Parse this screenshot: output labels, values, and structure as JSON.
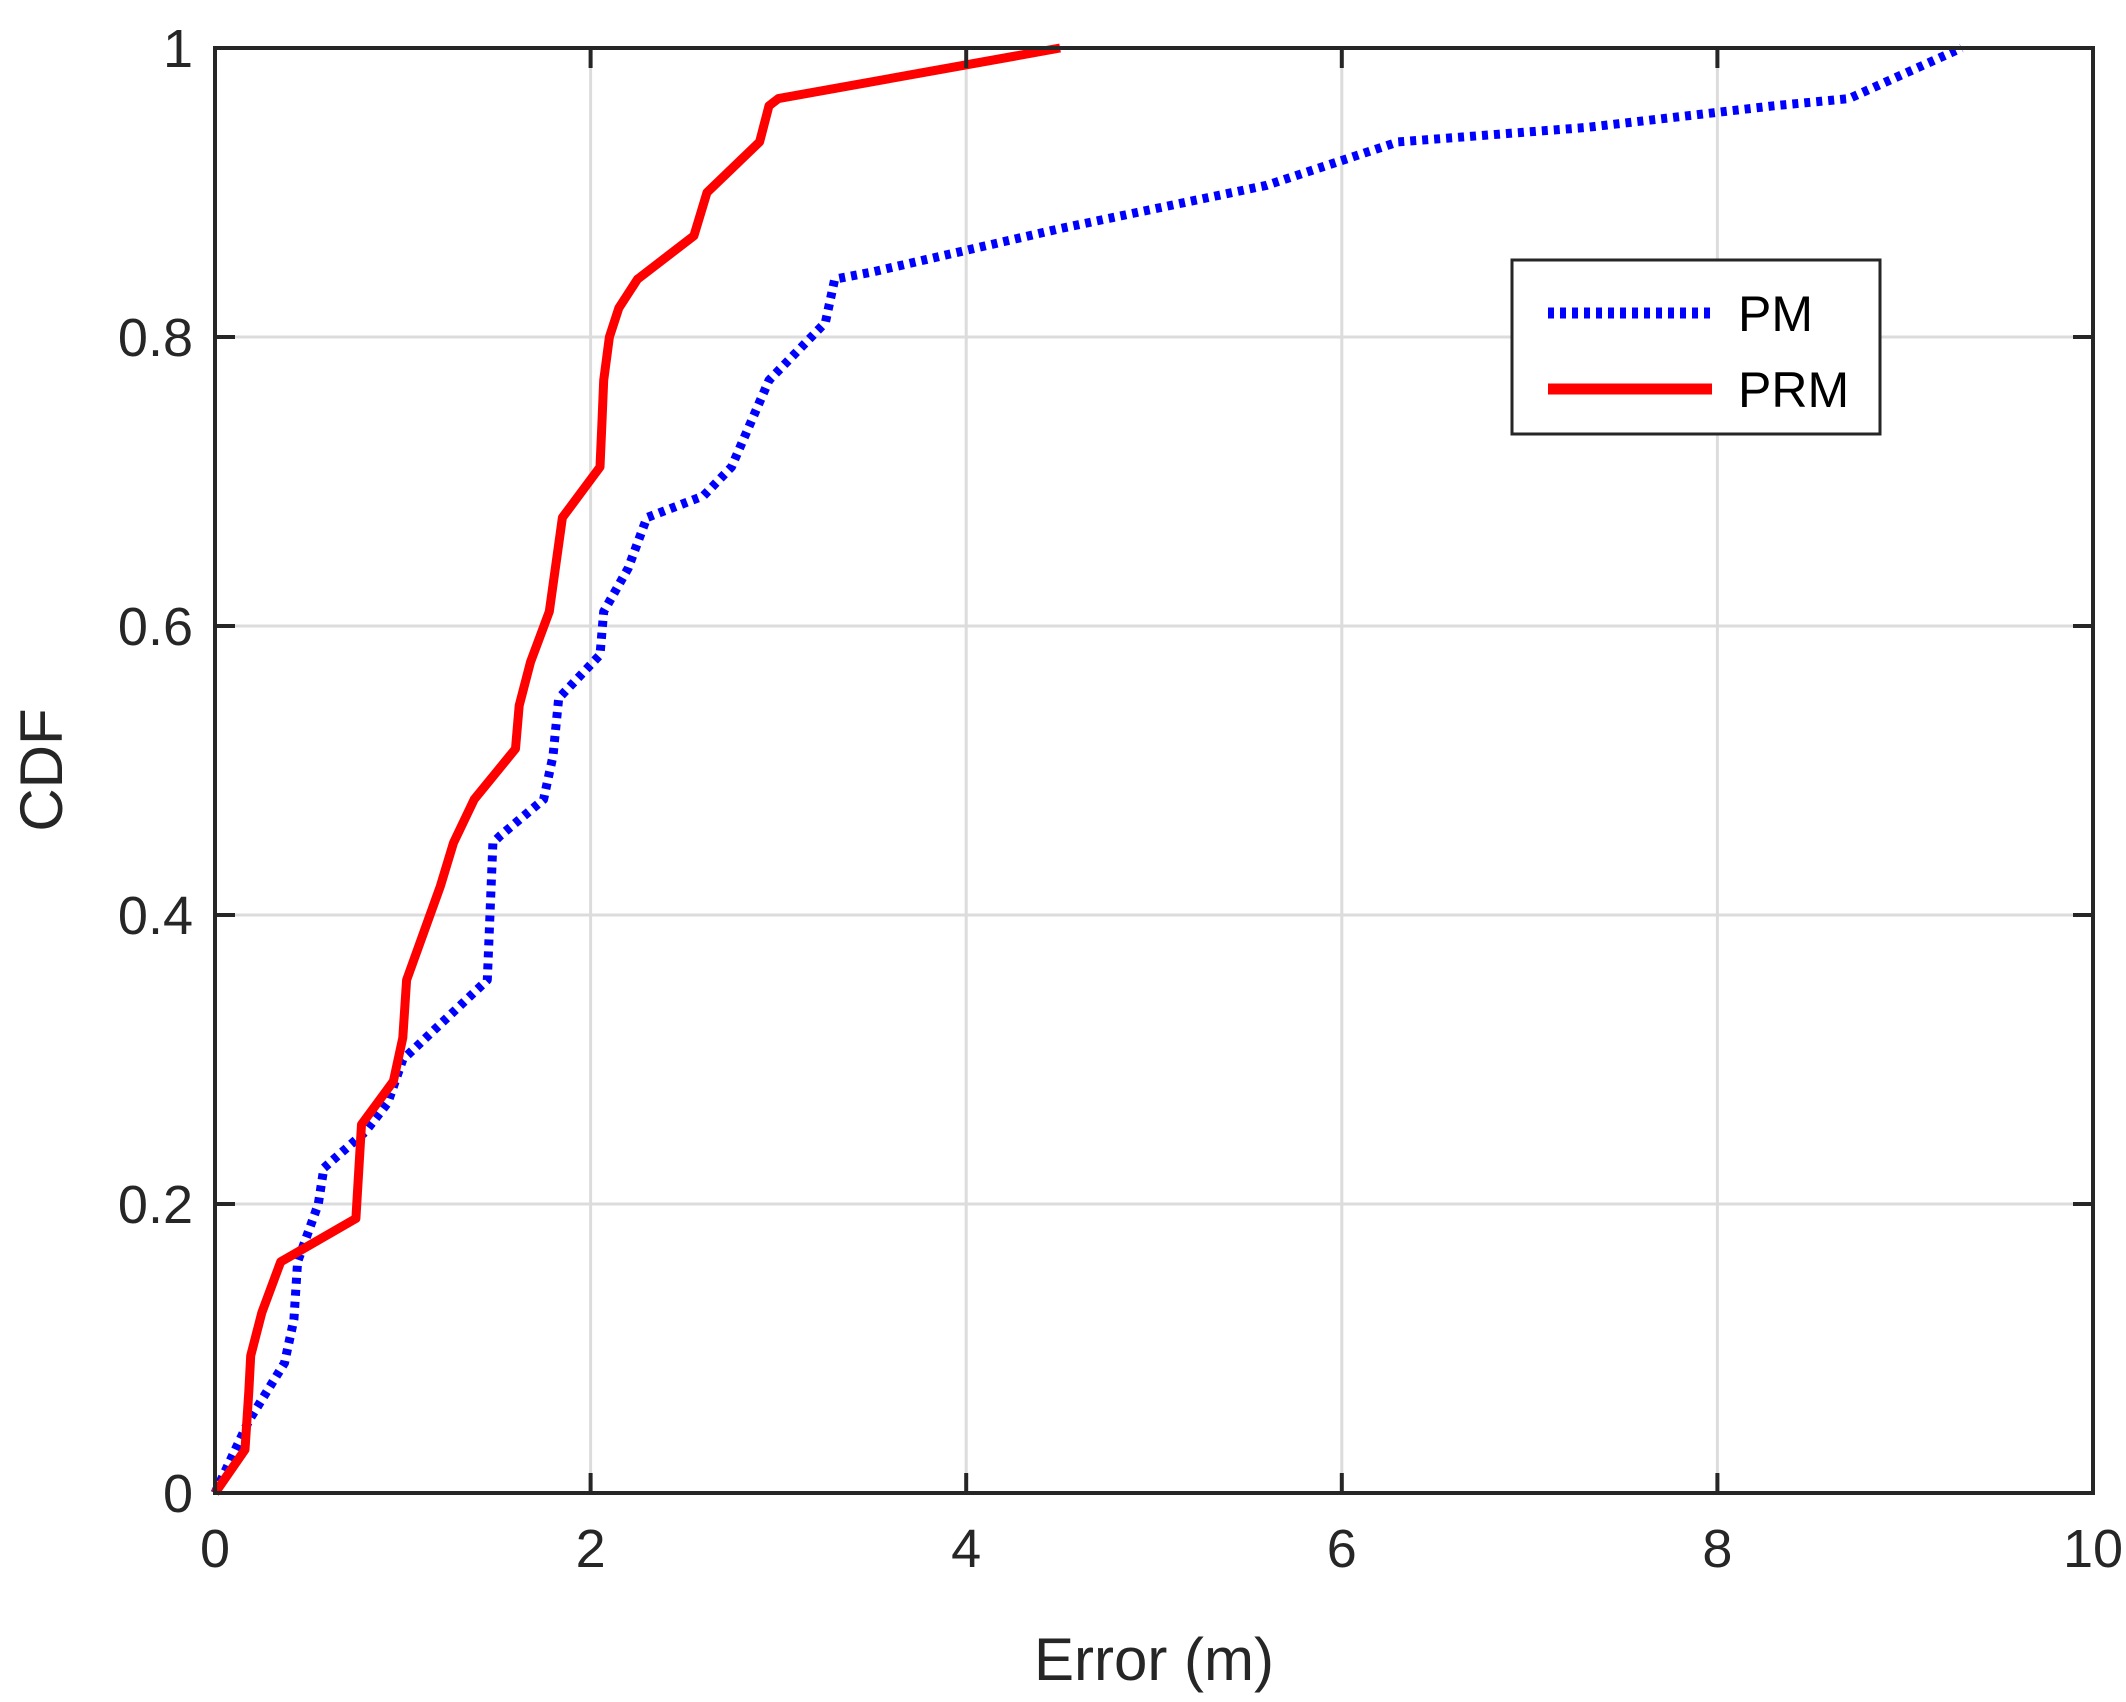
{
  "chart_data": {
    "type": "line",
    "title": "",
    "xlabel": "Error (m)",
    "ylabel": "CDF",
    "xlim": [
      0,
      10
    ],
    "ylim": [
      0,
      1
    ],
    "xticks": [
      0,
      2,
      4,
      6,
      8,
      10
    ],
    "xtick_labels": [
      "0",
      "2",
      "4",
      "6",
      "8",
      "10"
    ],
    "yticks": [
      0,
      0.2,
      0.4,
      0.6,
      0.8,
      1
    ],
    "ytick_labels": [
      "0",
      "0.2",
      "0.4",
      "0.6",
      "0.8",
      "1"
    ],
    "grid": true,
    "legend_position": "top-right",
    "series": [
      {
        "name": "PM",
        "color": "#0000ff",
        "line_style": "dotted",
        "x": [
          0,
          0.18,
          0.37,
          0.42,
          0.44,
          0.55,
          0.58,
          0.8,
          0.92,
          1.0,
          1.45,
          1.48,
          1.52,
          1.75,
          1.8,
          1.83,
          2.05,
          2.07,
          2.2,
          2.3,
          2.6,
          2.75,
          2.95,
          3.25,
          3.3,
          3.5,
          4.5,
          5.6,
          6.3,
          7.3,
          8.3,
          8.7,
          9.3
        ],
        "y": [
          0,
          0.05,
          0.09,
          0.12,
          0.16,
          0.2,
          0.225,
          0.25,
          0.27,
          0.3,
          0.355,
          0.45,
          0.455,
          0.48,
          0.51,
          0.55,
          0.58,
          0.61,
          0.64,
          0.675,
          0.69,
          0.71,
          0.77,
          0.81,
          0.84,
          0.845,
          0.875,
          0.905,
          0.935,
          0.945,
          0.96,
          0.965,
          1.0
        ]
      },
      {
        "name": "PRM",
        "color": "#ff0000",
        "line_style": "solid",
        "x": [
          0,
          0.16,
          0.18,
          0.19,
          0.25,
          0.35,
          0.75,
          0.78,
          0.95,
          1.0,
          1.02,
          1.2,
          1.27,
          1.38,
          1.6,
          1.62,
          1.68,
          1.78,
          1.85,
          2.05,
          2.06,
          2.07,
          2.1,
          2.15,
          2.25,
          2.55,
          2.62,
          2.9,
          2.95,
          3.0,
          4.5
        ],
        "y": [
          0,
          0.03,
          0.07,
          0.095,
          0.125,
          0.16,
          0.19,
          0.255,
          0.285,
          0.315,
          0.355,
          0.42,
          0.45,
          0.48,
          0.515,
          0.545,
          0.575,
          0.61,
          0.675,
          0.71,
          0.74,
          0.77,
          0.8,
          0.82,
          0.84,
          0.87,
          0.9,
          0.935,
          0.96,
          0.965,
          1.0
        ]
      }
    ]
  }
}
